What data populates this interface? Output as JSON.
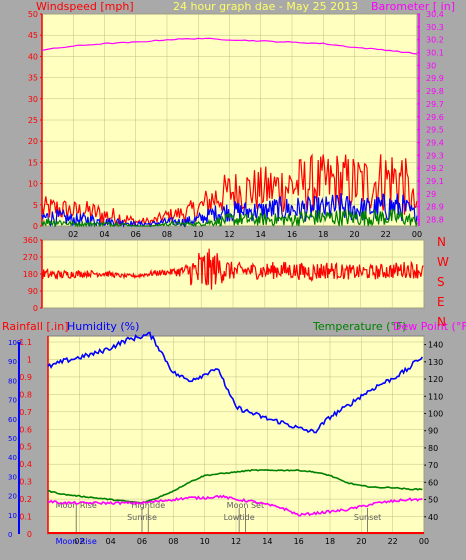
{
  "header": {
    "left_title": "Windspeed [mph]",
    "center_title": "24 hour graph dae - May 25 2013",
    "right_title": "Barometer [ in]"
  },
  "colors": {
    "background": "#a9a9a9",
    "plot_bg": "#ffffc0",
    "grid": "#c0c080",
    "axis": "#ff0000",
    "gust": "#ff0000",
    "wind": "#0000ff",
    "avgwind": "#008000",
    "barometer": "#ff00ff",
    "humidity": "#0000ff",
    "temperature": "#008000",
    "dewpoint": "#ff00ff",
    "rain": "#ff0000",
    "marker_text": "#606060"
  },
  "chart_data": [
    {
      "id": "wind-baro",
      "type": "line",
      "x_ticks": [
        "02",
        "04",
        "06",
        "08",
        "10",
        "12",
        "14",
        "16",
        "18",
        "20",
        "22",
        "00"
      ],
      "x_tick_hours": [
        2,
        4,
        6,
        8,
        10,
        12,
        14,
        16,
        18,
        20,
        22,
        24
      ],
      "xlim": [
        0,
        24
      ],
      "ylabel": "Windspeed [mph]",
      "y2label": "Barometer [ in]",
      "ylim": [
        0,
        50
      ],
      "y_ticks": [
        "0",
        "5",
        "10",
        "15",
        "20",
        "25",
        "30",
        "35",
        "40",
        "45",
        "50"
      ],
      "y2lim": [
        28.75,
        30.4
      ],
      "y2_ticks": [
        "28.8",
        "28.9",
        "29",
        "29.1",
        "29.2",
        "29.3",
        "29.4",
        "29.5",
        "29.6",
        "29.7",
        "29.8",
        "29.9",
        "30",
        "30.1",
        "30.2",
        "30.3",
        "30.4"
      ],
      "series": [
        {
          "key": "gust",
          "x": [
            0,
            1,
            2,
            3,
            4,
            5,
            6,
            7,
            8,
            9,
            10,
            11,
            12,
            13,
            14,
            15,
            16,
            17,
            18,
            19,
            20,
            21,
            22,
            23,
            24
          ],
          "min": [
            1,
            1,
            1,
            1,
            0,
            0,
            0,
            0,
            1,
            1,
            1,
            2,
            3,
            3,
            3,
            3,
            3,
            3,
            3,
            3,
            3,
            3,
            3,
            2,
            2
          ],
          "max": [
            7,
            7,
            6,
            6,
            5,
            4,
            2,
            2,
            4,
            5,
            7,
            11,
            13,
            14,
            14,
            15,
            16,
            17,
            17,
            18,
            17,
            17,
            19,
            20,
            6
          ]
        },
        {
          "key": "wind",
          "x": [
            0,
            1,
            2,
            3,
            4,
            5,
            6,
            7,
            8,
            9,
            10,
            11,
            12,
            13,
            14,
            15,
            16,
            17,
            18,
            19,
            20,
            21,
            22,
            23,
            24
          ],
          "min": [
            0,
            0,
            0,
            0,
            0,
            0,
            0,
            0,
            0,
            0,
            0,
            1,
            1,
            1,
            1,
            1,
            1,
            1,
            1,
            1,
            1,
            1,
            1,
            1,
            1
          ],
          "max": [
            4,
            4,
            3,
            3,
            2,
            2,
            1,
            1,
            2,
            2,
            3,
            5,
            6,
            6,
            6,
            7,
            7,
            7,
            7,
            8,
            7,
            7,
            8,
            8,
            4
          ]
        },
        {
          "key": "avgwind",
          "x": [
            0,
            1,
            2,
            3,
            4,
            5,
            6,
            7,
            8,
            9,
            10,
            11,
            12,
            13,
            14,
            15,
            16,
            17,
            18,
            19,
            20,
            21,
            22,
            23,
            24
          ],
          "min": [
            0,
            0,
            0,
            0,
            0,
            0,
            0,
            0,
            0,
            0,
            0,
            0,
            0,
            0,
            0,
            0,
            0,
            0,
            0,
            0,
            0,
            0,
            0,
            0,
            0
          ],
          "max": [
            2,
            2,
            1,
            1,
            1,
            1,
            0,
            0,
            1,
            1,
            1,
            2,
            3,
            3,
            3,
            3,
            3,
            4,
            4,
            4,
            4,
            4,
            4,
            4,
            2
          ]
        },
        {
          "key": "barometer",
          "axis": "right",
          "x": [
            0,
            2,
            4,
            6,
            8,
            10,
            12,
            14,
            16,
            18,
            20,
            22,
            24
          ],
          "y": [
            30.12,
            30.15,
            30.17,
            30.18,
            30.2,
            30.21,
            30.2,
            30.19,
            30.18,
            30.17,
            30.14,
            30.12,
            30.09
          ]
        }
      ]
    },
    {
      "id": "wind-direction",
      "type": "line",
      "x_ticks": [],
      "xlim": [
        0,
        24
      ],
      "ylim": [
        0,
        360
      ],
      "y_ticks": [
        "0",
        "90",
        "180",
        "270",
        "360"
      ],
      "direction_labels": [
        "N",
        "W",
        "S",
        "E",
        "N"
      ],
      "series": [
        {
          "key": "direction",
          "x": [
            0,
            1,
            2,
            3,
            4,
            5,
            6,
            7,
            8,
            9,
            10,
            11,
            12,
            13,
            14,
            15,
            16,
            17,
            18,
            19,
            20,
            21,
            22,
            23,
            24
          ],
          "min": [
            150,
            150,
            160,
            165,
            165,
            160,
            160,
            170,
            175,
            160,
            40,
            120,
            150,
            155,
            150,
            155,
            150,
            140,
            155,
            150,
            150,
            150,
            155,
            160,
            150
          ],
          "max": [
            210,
            200,
            200,
            200,
            200,
            180,
            180,
            200,
            205,
            230,
            330,
            300,
            240,
            240,
            240,
            250,
            240,
            240,
            250,
            230,
            230,
            230,
            240,
            250,
            240
          ]
        }
      ]
    },
    {
      "id": "humidity-temp",
      "type": "line",
      "x_ticks": [
        "02",
        "04",
        "06",
        "08",
        "10",
        "12",
        "14",
        "16",
        "18",
        "20",
        "22",
        "00"
      ],
      "xlim": [
        0,
        24
      ],
      "y_left_outer_label": "Rainfall [.in]",
      "y_left_outer_ticks": [
        "0",
        "0.1",
        "0.2",
        "0.3",
        "0.4",
        "0.5",
        "0.6",
        "0.7",
        "0.8",
        "0.9",
        "1",
        "1.1"
      ],
      "y_left_outer_lim": [
        0,
        1.1
      ],
      "y_left_inner_label": "Humidity (%)",
      "y_left_inner_ticks": [
        "0",
        "10",
        "20",
        "30",
        "40",
        "50",
        "60",
        "70",
        "80",
        "90",
        "100"
      ],
      "y_left_inner_lim": [
        0,
        100
      ],
      "y_right_label_a": "Temperature (°F)",
      "y_right_label_b": "Dew Point (°F)",
      "y_right_ticks": [
        "40",
        "50",
        "60",
        "70",
        "80",
        "90",
        "100",
        "110",
        "120",
        "130",
        "140"
      ],
      "y_right_lim": [
        30,
        145
      ],
      "markers": [
        {
          "label": "Moon Rise",
          "x": 1.8
        },
        {
          "label": "Sunrise",
          "x": 6.0
        },
        {
          "label": "Hightide",
          "x": 6.4
        },
        {
          "label": "Lowtide",
          "x": 12.2
        },
        {
          "label": "Moon Set",
          "x": 12.6
        },
        {
          "label": "Sunset",
          "x": 20.4
        }
      ],
      "series": [
        {
          "key": "humidity",
          "x": [
            0,
            1,
            2,
            3,
            4,
            5,
            6,
            6.5,
            7,
            8,
            9,
            10,
            10.5,
            11,
            11.5,
            12,
            13,
            14,
            15,
            16,
            17,
            18,
            19,
            20,
            21,
            22,
            23,
            23.5,
            24
          ],
          "y": [
            87,
            90,
            92,
            94,
            97,
            101,
            103,
            104,
            98,
            84,
            80,
            83,
            86,
            84,
            74,
            66,
            63,
            60,
            58,
            55,
            53,
            61,
            66,
            72,
            77,
            81,
            86,
            90,
            93
          ]
        },
        {
          "key": "temperature",
          "x": [
            0,
            1,
            2,
            3,
            4,
            5,
            6,
            7,
            8,
            9,
            10,
            11,
            12,
            13,
            14,
            15,
            16,
            17,
            18,
            19,
            20,
            21,
            22,
            23,
            24
          ],
          "y": [
            55,
            53,
            52,
            51,
            50,
            49,
            48,
            51,
            55,
            60,
            64,
            65,
            66,
            67,
            67,
            67,
            67,
            66,
            64,
            60,
            58,
            57,
            57,
            56,
            56
          ]
        },
        {
          "key": "dewpoint",
          "x": [
            0,
            1,
            2,
            3,
            4,
            5,
            6,
            7,
            8,
            9,
            10,
            11,
            12,
            13,
            14,
            15,
            16,
            17,
            18,
            19,
            20,
            21,
            22,
            23,
            24
          ],
          "y": [
            49,
            48,
            48,
            48,
            48,
            48,
            48,
            49,
            50,
            51,
            51,
            52,
            50,
            49,
            47,
            45,
            41,
            42,
            43,
            44,
            46,
            48,
            49,
            50,
            50
          ]
        },
        {
          "key": "rain",
          "x": [
            0,
            24
          ],
          "y": [
            0,
            0
          ]
        }
      ]
    }
  ]
}
